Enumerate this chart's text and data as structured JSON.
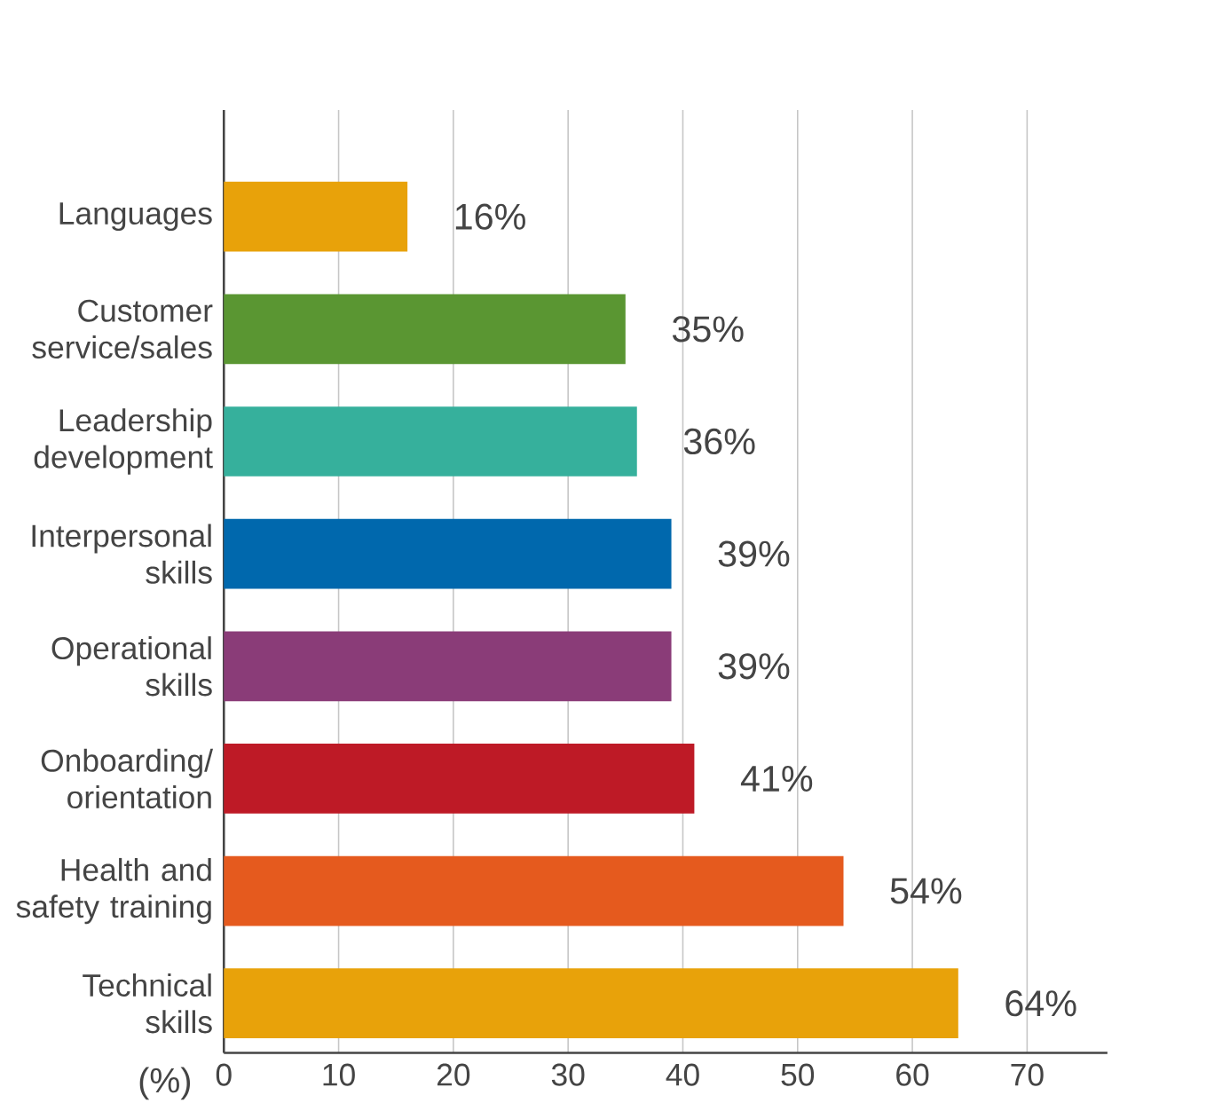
{
  "chart_data": {
    "type": "bar",
    "orientation": "horizontal",
    "xlabel": "(%)",
    "categories": [
      "Languages",
      "Customer service/sales",
      "Leadership development",
      "Interpersonal skills",
      "Operational skills",
      "Onboarding/ orientation",
      "Health and safety training",
      "Technical skills"
    ],
    "values": [
      16,
      35,
      36,
      39,
      39,
      41,
      54,
      64
    ],
    "value_labels": [
      "16%",
      "35%",
      "36%",
      "39%",
      "39%",
      "41%",
      "54%",
      "64%"
    ],
    "colors": [
      "#e8a20a",
      "#5a9632",
      "#36b09c",
      "#0068ad",
      "#8a3c78",
      "#be1a26",
      "#e55a1e",
      "#e8a20a"
    ],
    "xlim": [
      0,
      77
    ],
    "xticks": [
      0,
      10,
      20,
      30,
      40,
      50,
      60,
      70
    ],
    "grid": "x"
  }
}
